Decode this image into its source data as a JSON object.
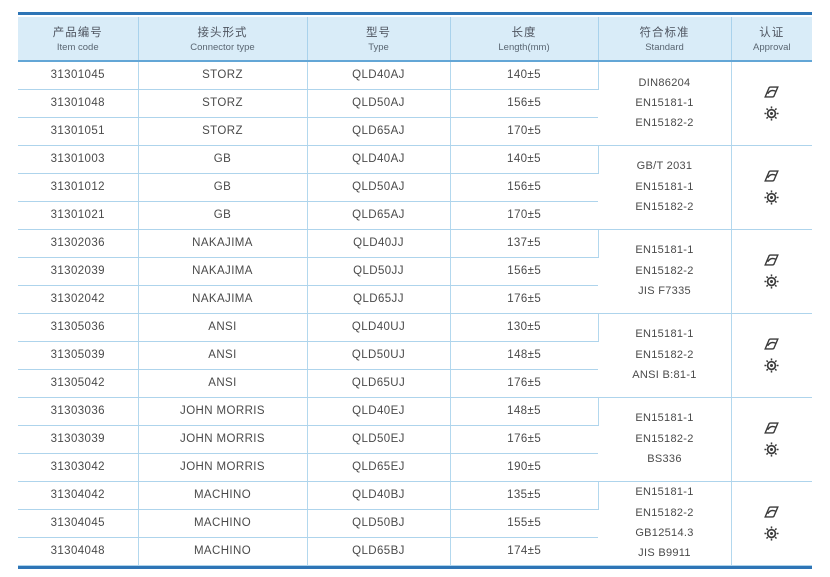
{
  "table": {
    "columns": [
      {
        "zh": "产品编号",
        "en": "Item code"
      },
      {
        "zh": "接头形式",
        "en": "Connector type"
      },
      {
        "zh": "型号",
        "en": "Type"
      },
      {
        "zh": "长度",
        "en": "Length(mm)"
      },
      {
        "zh": "符合标准",
        "en": "Standard"
      },
      {
        "zh": "认证",
        "en": "Approval"
      }
    ],
    "groups": [
      {
        "rows": [
          {
            "item_code": "31301045",
            "connector_type": "STORZ",
            "type": "QLD40AJ",
            "length": "140±5"
          },
          {
            "item_code": "31301048",
            "connector_type": "STORZ",
            "type": "QLD50AJ",
            "length": "156±5"
          },
          {
            "item_code": "31301051",
            "connector_type": "STORZ",
            "type": "QLD65AJ",
            "length": "170±5"
          }
        ],
        "standards": [
          "DIN86204",
          "EN15181-1",
          "EN15182-2"
        ],
        "approvals": [
          "approval-stamp",
          "wheelmark"
        ]
      },
      {
        "rows": [
          {
            "item_code": "31301003",
            "connector_type": "GB",
            "type": "QLD40AJ",
            "length": "140±5"
          },
          {
            "item_code": "31301012",
            "connector_type": "GB",
            "type": "QLD50AJ",
            "length": "156±5"
          },
          {
            "item_code": "31301021",
            "connector_type": "GB",
            "type": "QLD65AJ",
            "length": "170±5"
          }
        ],
        "standards": [
          "GB/T 2031",
          "EN15181-1",
          "EN15182-2"
        ],
        "approvals": [
          "approval-stamp",
          "wheelmark"
        ]
      },
      {
        "rows": [
          {
            "item_code": "31302036",
            "connector_type": "NAKAJIMA",
            "type": "QLD40JJ",
            "length": "137±5"
          },
          {
            "item_code": "31302039",
            "connector_type": "NAKAJIMA",
            "type": "QLD50JJ",
            "length": "156±5"
          },
          {
            "item_code": "31302042",
            "connector_type": "NAKAJIMA",
            "type": "QLD65JJ",
            "length": "176±5"
          }
        ],
        "standards": [
          "EN15181-1",
          "EN15182-2",
          "JIS F7335"
        ],
        "approvals": [
          "approval-stamp",
          "wheelmark"
        ]
      },
      {
        "rows": [
          {
            "item_code": "31305036",
            "connector_type": "ANSI",
            "type": "QLD40UJ",
            "length": "130±5"
          },
          {
            "item_code": "31305039",
            "connector_type": "ANSI",
            "type": "QLD50UJ",
            "length": "148±5"
          },
          {
            "item_code": "31305042",
            "connector_type": "ANSI",
            "type": "QLD65UJ",
            "length": "176±5"
          }
        ],
        "standards": [
          "EN15181-1",
          "EN15182-2",
          "ANSI B:81-1"
        ],
        "approvals": [
          "approval-stamp",
          "wheelmark"
        ]
      },
      {
        "rows": [
          {
            "item_code": "31303036",
            "connector_type": "JOHN MORRIS",
            "type": "QLD40EJ",
            "length": "148±5"
          },
          {
            "item_code": "31303039",
            "connector_type": "JOHN MORRIS",
            "type": "QLD50EJ",
            "length": "176±5"
          },
          {
            "item_code": "31303042",
            "connector_type": "JOHN MORRIS",
            "type": "QLD65EJ",
            "length": "190±5"
          }
        ],
        "standards": [
          "EN15181-1",
          "EN15182-2",
          "BS336"
        ],
        "approvals": [
          "approval-stamp",
          "wheelmark"
        ]
      },
      {
        "rows": [
          {
            "item_code": "31304042",
            "connector_type": "MACHINO",
            "type": "QLD40BJ",
            "length": "135±5"
          },
          {
            "item_code": "31304045",
            "connector_type": "MACHINO",
            "type": "QLD50BJ",
            "length": "155±5"
          },
          {
            "item_code": "31304048",
            "connector_type": "MACHINO",
            "type": "QLD65BJ",
            "length": "174±5"
          }
        ],
        "standards": [
          "EN15181-1",
          "EN15182-2",
          "GB12514.3",
          "JIS B9911"
        ],
        "approvals": [
          "approval-stamp",
          "wheelmark"
        ]
      }
    ]
  },
  "colors": {
    "border_strong": "#2e75b6",
    "header_bg": "#d9ecf8",
    "grid_line": "#aed4ec",
    "text": "#4a4a4a",
    "icon": "#3a3a3a"
  }
}
